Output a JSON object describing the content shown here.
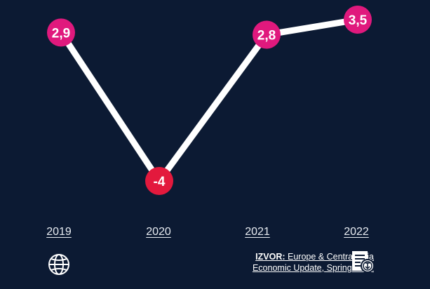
{
  "chart_data": {
    "type": "line",
    "categories": [
      "2019",
      "2020",
      "2021",
      "2022"
    ],
    "values": [
      2.9,
      -4,
      2.8,
      3.5
    ],
    "labels": [
      "2,9",
      "-4",
      "2,8",
      "3,5"
    ],
    "ylim": [
      -4,
      3.5
    ],
    "title": "",
    "xlabel": "",
    "ylabel": "",
    "grid": false,
    "colors": {
      "line": "#ffffff",
      "positive": "#e0197d",
      "negative": "#e3193d",
      "background": "#0c1a33"
    }
  },
  "source": {
    "bold": "IZVOR:",
    "line1": " Europe & Central Asia",
    "line2": "Economic Update, Spring 2021"
  }
}
